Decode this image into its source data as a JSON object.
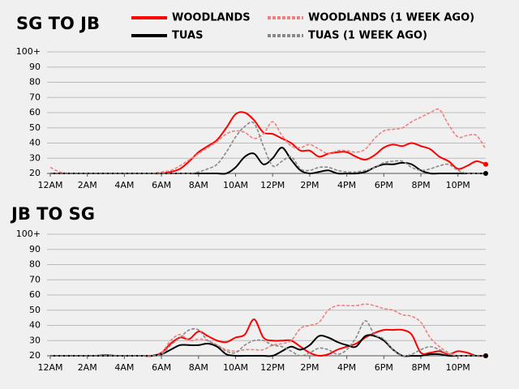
{
  "chart_data": [
    {
      "type": "line",
      "title": "SG TO JB",
      "x": [
        0,
        0.5,
        1,
        1.5,
        2,
        2.5,
        3,
        3.5,
        4,
        4.5,
        5,
        5.5,
        6,
        6.5,
        7,
        7.5,
        8,
        8.5,
        9,
        9.5,
        10,
        10.5,
        11,
        11.5,
        12,
        12.5,
        13,
        13.5,
        14,
        14.5,
        15,
        15.5,
        16,
        16.5,
        17,
        17.5,
        18,
        18.5,
        19,
        19.5,
        20,
        20.5,
        21,
        21.5,
        22,
        22.5,
        23,
        23.5
      ],
      "xlim": [
        0,
        23.5
      ],
      "xticks": [
        {
          "value": 0,
          "label": "12AM"
        },
        {
          "value": 2,
          "label": "2AM"
        },
        {
          "value": 4,
          "label": "4AM"
        },
        {
          "value": 6,
          "label": "6AM"
        },
        {
          "value": 8,
          "label": "8AM"
        },
        {
          "value": 10,
          "label": "10AM"
        },
        {
          "value": 12,
          "label": "12PM"
        },
        {
          "value": 14,
          "label": "2PM"
        },
        {
          "value": 16,
          "label": "4PM"
        },
        {
          "value": 18,
          "label": "6PM"
        },
        {
          "value": 20,
          "label": "8PM"
        },
        {
          "value": 22,
          "label": "10PM"
        }
      ],
      "ylim": [
        20,
        100
      ],
      "yticks": [
        20,
        30,
        40,
        50,
        60,
        70,
        80,
        90,
        {
          "value": 100,
          "label": "100+"
        }
      ],
      "grid": true,
      "series": [
        {
          "name": "WOODLANDS",
          "color": "#ff0000",
          "dash": false,
          "end_marker": true,
          "values": [
            20,
            20,
            20,
            20,
            20,
            20,
            20,
            20,
            20,
            20,
            20,
            20,
            20,
            21,
            23,
            28,
            34,
            38,
            42,
            50,
            59,
            60,
            55,
            47,
            46,
            43,
            40,
            35,
            35,
            31,
            33,
            34,
            34,
            31,
            29,
            32,
            37,
            39,
            38,
            40,
            38,
            36,
            31,
            28,
            23,
            25,
            28,
            26
          ]
        },
        {
          "name": "WOODLANDS (1 WEEK AGO)",
          "color": "#f08080",
          "dash": true,
          "end_marker": false,
          "values": [
            24,
            21,
            20,
            20,
            20,
            20,
            20,
            20,
            20,
            20,
            20,
            20,
            21,
            22,
            25,
            29,
            33,
            37,
            41,
            46,
            48,
            47,
            43,
            46,
            54,
            45,
            38,
            37,
            39,
            36,
            33,
            35,
            35,
            34,
            36,
            43,
            48,
            49,
            50,
            54,
            57,
            60,
            62,
            52,
            44,
            45,
            45,
            36
          ]
        },
        {
          "name": "TUAS",
          "color": "#000000",
          "dash": false,
          "end_marker": true,
          "values": [
            20,
            20,
            20,
            20,
            20,
            20,
            20,
            20,
            20,
            20,
            20,
            20,
            20,
            20,
            20,
            20,
            20,
            20,
            20,
            20,
            24,
            31,
            33,
            26,
            30,
            37,
            29,
            22,
            20,
            21,
            22,
            20,
            20,
            20,
            21,
            24,
            26,
            26,
            27,
            26,
            22,
            20,
            20,
            20,
            20,
            20,
            20,
            20
          ]
        },
        {
          "name": "TUAS (1 WEEK AGO)",
          "color": "#888888",
          "dash": true,
          "end_marker": false,
          "values": [
            20,
            20,
            20,
            20,
            20,
            20,
            20,
            20,
            20,
            20,
            20,
            20,
            20,
            20,
            20,
            20,
            21,
            23,
            26,
            34,
            44,
            51,
            53,
            38,
            25,
            28,
            31,
            23,
            22,
            24,
            24,
            22,
            21,
            21,
            22,
            24,
            27,
            28,
            28,
            24,
            22,
            23,
            25,
            26,
            22,
            20,
            20,
            20
          ]
        }
      ]
    },
    {
      "type": "line",
      "title": "JB TO SG",
      "x": [
        0,
        0.5,
        1,
        1.5,
        2,
        2.5,
        3,
        3.5,
        4,
        4.5,
        5,
        5.5,
        6,
        6.5,
        7,
        7.5,
        8,
        8.5,
        9,
        9.5,
        10,
        10.5,
        11,
        11.5,
        12,
        12.5,
        13,
        13.5,
        14,
        14.5,
        15,
        15.5,
        16,
        16.5,
        17,
        17.5,
        18,
        18.5,
        19,
        19.5,
        20,
        20.5,
        21,
        21.5,
        22,
        22.5,
        23,
        23.5
      ],
      "xlim": [
        0,
        23.5
      ],
      "xticks": [
        {
          "value": 0,
          "label": "12AM"
        },
        {
          "value": 2,
          "label": "2AM"
        },
        {
          "value": 4,
          "label": "4AM"
        },
        {
          "value": 6,
          "label": "6AM"
        },
        {
          "value": 8,
          "label": "8AM"
        },
        {
          "value": 10,
          "label": "10AM"
        },
        {
          "value": 12,
          "label": "12PM"
        },
        {
          "value": 14,
          "label": "2PM"
        },
        {
          "value": 16,
          "label": "4PM"
        },
        {
          "value": 18,
          "label": "6PM"
        },
        {
          "value": 20,
          "label": "8PM"
        },
        {
          "value": 22,
          "label": "10PM"
        }
      ],
      "ylim": [
        20,
        100
      ],
      "yticks": [
        20,
        30,
        40,
        50,
        60,
        70,
        80,
        90,
        {
          "value": 100,
          "label": "100+"
        }
      ],
      "grid": true,
      "series": [
        {
          "color": "#ff0000",
          "dash": false,
          "end_marker": true,
          "values": [
            20,
            20,
            20,
            20,
            20,
            20,
            20.5,
            20,
            20,
            20,
            20,
            20,
            22,
            28,
            32,
            31,
            36,
            33,
            30,
            29,
            32,
            34,
            44,
            32,
            30,
            30,
            30,
            26,
            22,
            20,
            21,
            24,
            26,
            28,
            32,
            35,
            37,
            37,
            37,
            34,
            22,
            22,
            23,
            21,
            23,
            22,
            20,
            20
          ]
        },
        {
          "color": "#f08080",
          "dash": true,
          "end_marker": false,
          "values": [
            20,
            20,
            20,
            20,
            20,
            20,
            20,
            20,
            20,
            20,
            20,
            20,
            22,
            30,
            34,
            30,
            31,
            30,
            27,
            24,
            23,
            24,
            24,
            24,
            27,
            28,
            30,
            38,
            40,
            42,
            50,
            53,
            53,
            53,
            54,
            53,
            51,
            50,
            47,
            46,
            42,
            32,
            26,
            22,
            20,
            20,
            20,
            20
          ]
        },
        {
          "color": "#000000",
          "dash": false,
          "end_marker": true,
          "values": [
            20,
            20,
            20,
            20,
            20,
            20,
            20,
            20,
            20,
            20,
            20,
            20,
            21,
            24,
            27,
            27,
            27,
            28,
            26,
            21,
            20,
            20,
            20,
            20,
            20,
            23,
            26,
            24,
            27,
            33,
            32,
            29,
            27,
            26,
            33,
            33,
            30,
            24,
            20,
            20,
            20,
            21,
            21,
            20,
            20,
            20,
            20,
            20
          ]
        },
        {
          "color": "#888888",
          "dash": true,
          "end_marker": false,
          "values": [
            20,
            20,
            20,
            20,
            20,
            20,
            20,
            20,
            20,
            20,
            20,
            20,
            21,
            27,
            32,
            37,
            37,
            30,
            27,
            23,
            22,
            27,
            30,
            30,
            27,
            26,
            23,
            20,
            22,
            25,
            24,
            21,
            24,
            32,
            43,
            34,
            31,
            24,
            20,
            21,
            24,
            26,
            24,
            21,
            20,
            20,
            20,
            20
          ]
        }
      ]
    }
  ]
}
